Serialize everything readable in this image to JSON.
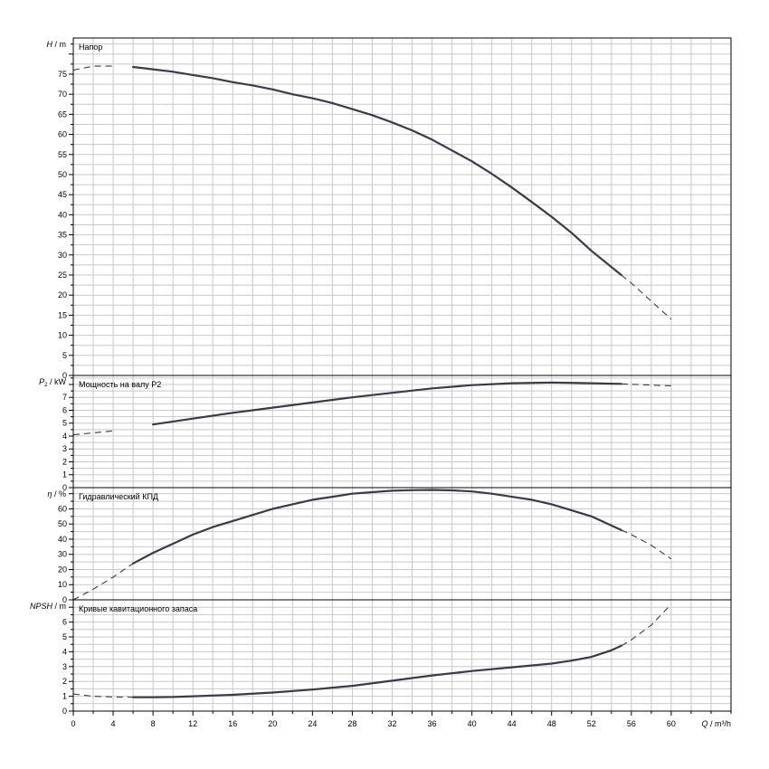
{
  "chart_data": {
    "type": "line",
    "x_axis": {
      "label_symbol": "Q",
      "label_unit": "m³/h",
      "range": [
        0,
        66
      ],
      "ticks": [
        0,
        4,
        8,
        12,
        16,
        20,
        24,
        28,
        32,
        36,
        40,
        44,
        48,
        52,
        56,
        60
      ],
      "grid_step": 2
    },
    "panels": [
      {
        "id": "head",
        "title": "Напор",
        "y_symbol": "H",
        "y_sub": "",
        "y_unit": "m",
        "ylim": [
          0,
          84
        ],
        "yticks": [
          0,
          5,
          10,
          15,
          20,
          25,
          30,
          35,
          40,
          45,
          50,
          55,
          60,
          65,
          70,
          75
        ],
        "curve": {
          "x": [
            0,
            2,
            4,
            6,
            8,
            10,
            12,
            14,
            16,
            18,
            20,
            22,
            24,
            26,
            28,
            30,
            32,
            34,
            36,
            38,
            40,
            42,
            44,
            46,
            48,
            50,
            52,
            54,
            55,
            56,
            58,
            60
          ],
          "y": [
            76,
            77,
            77,
            76.8,
            76.2,
            75.6,
            74.8,
            74,
            73,
            72.2,
            71.2,
            70,
            69,
            67.8,
            66.3,
            64.8,
            63,
            61,
            58.7,
            56,
            53.3,
            50.2,
            46.8,
            43.2,
            39.5,
            35.5,
            31,
            27,
            25,
            23,
            18.5,
            14
          ],
          "solid_from": 5,
          "solid_to": 55
        }
      },
      {
        "id": "power",
        "title": "Мощность на валу P2",
        "y_symbol": "P",
        "y_sub": "2",
        "y_unit": "kW",
        "ylim": [
          0,
          8.7
        ],
        "yticks": [
          0,
          1,
          2,
          3,
          4,
          5,
          6,
          7
        ],
        "curve": {
          "x": [
            0,
            4,
            8,
            12,
            16,
            20,
            24,
            28,
            32,
            36,
            40,
            44,
            48,
            52,
            55,
            58,
            60
          ],
          "y": [
            4.1,
            4.4,
            4.9,
            5.35,
            5.8,
            6.2,
            6.6,
            7.0,
            7.35,
            7.7,
            7.95,
            8.1,
            8.15,
            8.1,
            8.05,
            7.95,
            7.9
          ],
          "solid_from": 5,
          "solid_to": 55
        }
      },
      {
        "id": "efficiency",
        "title": "Гидравлический КПД",
        "y_symbol": "η",
        "y_sub": "",
        "y_unit": "%",
        "ylim": [
          0,
          74
        ],
        "yticks": [
          0,
          10,
          20,
          30,
          40,
          50,
          60
        ],
        "curve": {
          "x": [
            0,
            2,
            4,
            6,
            8,
            10,
            12,
            14,
            16,
            18,
            20,
            22,
            24,
            26,
            28,
            30,
            32,
            34,
            36,
            38,
            40,
            42,
            44,
            46,
            48,
            50,
            52,
            54,
            55,
            56,
            58,
            60
          ],
          "y": [
            0,
            7,
            15,
            24,
            31,
            37,
            43,
            48,
            52,
            56,
            60,
            63,
            66,
            68,
            70,
            71,
            72,
            72.3,
            72.5,
            72.2,
            71.5,
            70,
            68,
            66,
            63,
            59,
            55,
            49,
            46,
            43,
            36,
            27
          ],
          "solid_from": 6,
          "solid_to": 55
        }
      },
      {
        "id": "npsh",
        "title": "Кривые кавитационного запаса",
        "y_symbol": "NPSH",
        "y_sub": "",
        "y_unit": "m",
        "ylim": [
          0,
          7.5
        ],
        "yticks": [
          0,
          1,
          2,
          3,
          4,
          5,
          6
        ],
        "curve": {
          "x": [
            0,
            2,
            4,
            6,
            8,
            10,
            12,
            16,
            20,
            24,
            28,
            32,
            36,
            40,
            44,
            48,
            50,
            52,
            54,
            55,
            56,
            58,
            60
          ],
          "y": [
            1.15,
            1.0,
            0.95,
            0.93,
            0.93,
            0.95,
            1.0,
            1.1,
            1.25,
            1.45,
            1.7,
            2.05,
            2.4,
            2.7,
            2.95,
            3.2,
            3.4,
            3.65,
            4.1,
            4.4,
            4.8,
            5.8,
            7.2
          ],
          "solid_from": 6,
          "solid_to": 55
        }
      }
    ]
  }
}
